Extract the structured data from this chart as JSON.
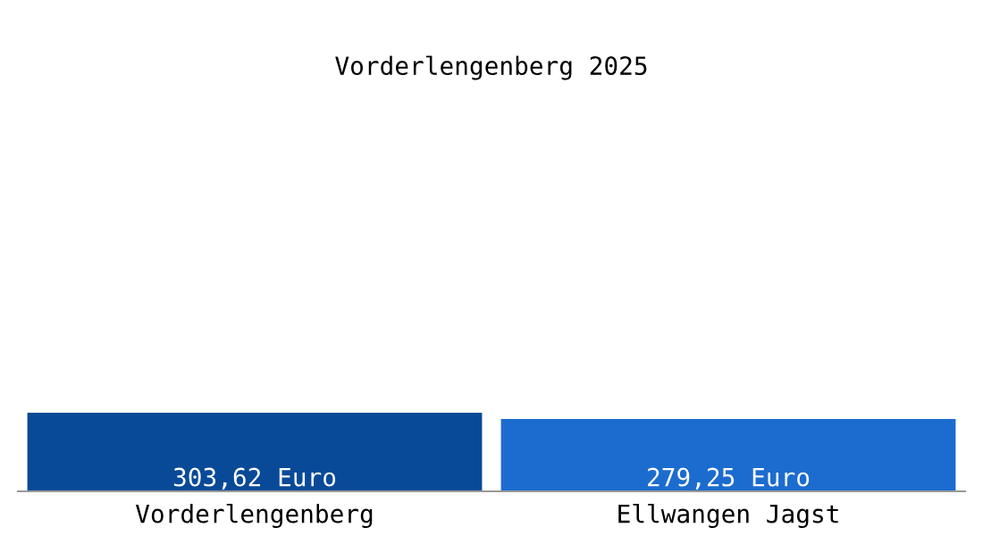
{
  "chart_data": {
    "type": "bar",
    "title": "Vorderlengenberg 2025",
    "categories": [
      "Vorderlengenberg",
      "Ellwangen Jagst"
    ],
    "values": [
      303.62,
      279.25
    ],
    "colors": [
      "#084a98",
      "#1c6ccf"
    ],
    "value_labels": [
      "303,62 Euro",
      "279,25 Euro"
    ],
    "tick_labels": "x",
    "grid": false,
    "legend": false
  }
}
